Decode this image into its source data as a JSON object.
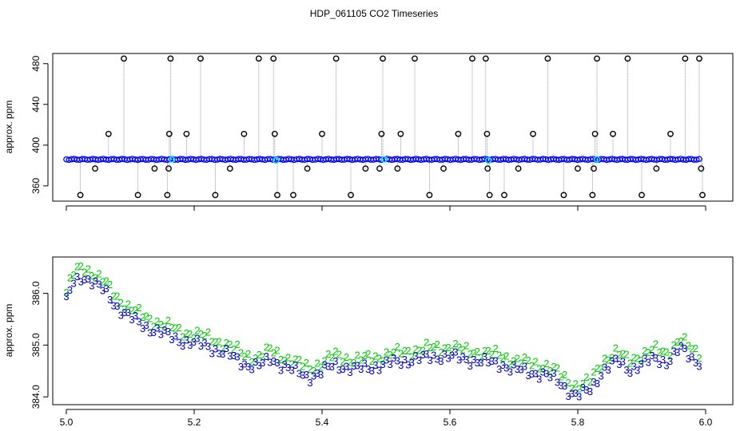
{
  "figure": {
    "title": "HDP_061105  CO2 Timeseries"
  },
  "colors": {
    "outlier": "#000000",
    "series_main": "#0000ff",
    "series_highlight": "#00e5ee",
    "connector": "#808080",
    "series_2": "#00cc00",
    "series_3": "#0000cc"
  },
  "chart_data": [
    {
      "type": "scatter",
      "title": "",
      "xlabel": "",
      "ylabel": "approx. ppm",
      "xlim": [
        5.0,
        6.0
      ],
      "ylim": [
        345,
        490
      ],
      "x_ticks": [
        "5.0",
        "5.2",
        "5.4",
        "5.6",
        "5.8",
        "6.0"
      ],
      "y_ticks": [
        "360",
        "400",
        "440",
        "480"
      ],
      "grid": false,
      "baseline_series": {
        "name": "",
        "x_start": 5.0,
        "x_end": 5.99,
        "y": 386,
        "points_approx": 240
      },
      "highlight_points": [
        {
          "x": 5.165,
          "y": 386
        },
        {
          "x": 5.328,
          "y": 385
        },
        {
          "x": 5.497,
          "y": 386
        },
        {
          "x": 5.66,
          "y": 385
        },
        {
          "x": 5.83,
          "y": 386
        }
      ],
      "outliers": [
        {
          "x": 5.022,
          "y": 351
        },
        {
          "x": 5.045,
          "y": 377
        },
        {
          "x": 5.066,
          "y": 411
        },
        {
          "x": 5.09,
          "y": 485
        },
        {
          "x": 5.112,
          "y": 351
        },
        {
          "x": 5.138,
          "y": 377
        },
        {
          "x": 5.158,
          "y": 351
        },
        {
          "x": 5.16,
          "y": 377
        },
        {
          "x": 5.161,
          "y": 411
        },
        {
          "x": 5.163,
          "y": 485
        },
        {
          "x": 5.188,
          "y": 411
        },
        {
          "x": 5.21,
          "y": 485
        },
        {
          "x": 5.233,
          "y": 351
        },
        {
          "x": 5.256,
          "y": 377
        },
        {
          "x": 5.278,
          "y": 411
        },
        {
          "x": 5.301,
          "y": 485
        },
        {
          "x": 5.324,
          "y": 485
        },
        {
          "x": 5.326,
          "y": 411
        },
        {
          "x": 5.33,
          "y": 351
        },
        {
          "x": 5.355,
          "y": 351
        },
        {
          "x": 5.377,
          "y": 377
        },
        {
          "x": 5.4,
          "y": 411
        },
        {
          "x": 5.422,
          "y": 485
        },
        {
          "x": 5.445,
          "y": 351
        },
        {
          "x": 5.468,
          "y": 377
        },
        {
          "x": 5.49,
          "y": 377
        },
        {
          "x": 5.493,
          "y": 411
        },
        {
          "x": 5.495,
          "y": 485
        },
        {
          "x": 5.518,
          "y": 377
        },
        {
          "x": 5.523,
          "y": 411
        },
        {
          "x": 5.545,
          "y": 485
        },
        {
          "x": 5.568,
          "y": 351
        },
        {
          "x": 5.59,
          "y": 377
        },
        {
          "x": 5.613,
          "y": 411
        },
        {
          "x": 5.635,
          "y": 485
        },
        {
          "x": 5.656,
          "y": 485
        },
        {
          "x": 5.658,
          "y": 411
        },
        {
          "x": 5.659,
          "y": 377
        },
        {
          "x": 5.662,
          "y": 351
        },
        {
          "x": 5.685,
          "y": 351
        },
        {
          "x": 5.707,
          "y": 377
        },
        {
          "x": 5.73,
          "y": 411
        },
        {
          "x": 5.753,
          "y": 485
        },
        {
          "x": 5.778,
          "y": 351
        },
        {
          "x": 5.8,
          "y": 377
        },
        {
          "x": 5.823,
          "y": 351
        },
        {
          "x": 5.825,
          "y": 377
        },
        {
          "x": 5.827,
          "y": 411
        },
        {
          "x": 5.83,
          "y": 485
        },
        {
          "x": 5.855,
          "y": 411
        },
        {
          "x": 5.878,
          "y": 485
        },
        {
          "x": 5.9,
          "y": 351
        },
        {
          "x": 5.923,
          "y": 377
        },
        {
          "x": 5.945,
          "y": 411
        },
        {
          "x": 5.968,
          "y": 485
        },
        {
          "x": 5.99,
          "y": 485
        },
        {
          "x": 5.993,
          "y": 377
        },
        {
          "x": 5.995,
          "y": 351
        }
      ]
    },
    {
      "type": "scatter",
      "title": "",
      "xlabel": "",
      "ylabel": "approx. ppm",
      "xlim": [
        5.0,
        6.0
      ],
      "ylim": [
        383.85,
        386.7
      ],
      "x_ticks": [
        "5.0",
        "5.2",
        "5.4",
        "5.6",
        "5.8",
        "6.0"
      ],
      "y_ticks": [
        "384.0",
        "385.0",
        "386.0"
      ],
      "grid": false,
      "marker_series": [
        {
          "symbol": "2",
          "offset": 0.12
        },
        {
          "symbol": "3",
          "offset": -0.06
        }
      ],
      "trend": {
        "x": [
          5.0,
          5.01,
          5.025,
          5.04,
          5.06,
          5.08,
          5.1,
          5.12,
          5.15,
          5.18,
          5.2,
          5.22,
          5.25,
          5.28,
          5.3,
          5.32,
          5.35,
          5.38,
          5.4,
          5.42,
          5.45,
          5.48,
          5.5,
          5.52,
          5.55,
          5.58,
          5.6,
          5.62,
          5.65,
          5.68,
          5.7,
          5.72,
          5.75,
          5.77,
          5.79,
          5.8,
          5.82,
          5.84,
          5.86,
          5.88,
          5.9,
          5.92,
          5.94,
          5.96,
          5.97,
          5.98,
          5.99
        ],
        "y": [
          385.9,
          386.25,
          386.4,
          386.3,
          386.1,
          385.8,
          385.6,
          385.45,
          385.3,
          385.15,
          385.1,
          385.05,
          384.9,
          384.7,
          384.65,
          384.8,
          384.6,
          384.45,
          384.55,
          384.7,
          384.6,
          384.65,
          384.7,
          384.75,
          384.8,
          384.85,
          384.85,
          384.8,
          384.75,
          384.7,
          384.6,
          384.55,
          384.5,
          384.35,
          384.15,
          384.1,
          384.2,
          384.6,
          384.75,
          384.6,
          384.7,
          384.8,
          384.75,
          385.0,
          384.9,
          384.8,
          384.75
        ]
      }
    }
  ]
}
